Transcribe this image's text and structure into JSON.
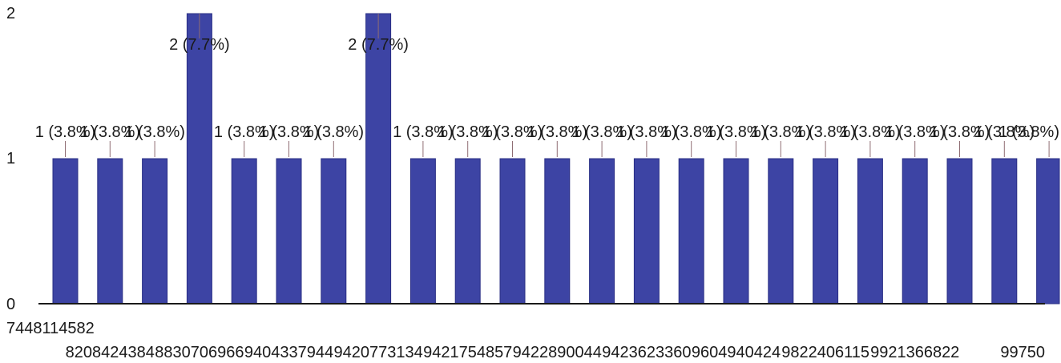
{
  "chart_data": {
    "type": "bar",
    "categories": [
      "7448114582",
      "8208424384",
      "",
      "8830706966",
      "",
      "9404337944",
      "",
      "9420773134",
      "",
      "9421754857",
      "",
      "9422890044",
      "",
      "9423623360",
      "",
      "9604940424",
      "",
      "9822406115",
      "",
      "9921366822",
      "",
      "99750",
      ""
    ],
    "values": [
      1,
      1,
      1,
      2,
      1,
      1,
      1,
      2,
      1,
      1,
      1,
      1,
      1,
      1,
      1,
      1,
      1,
      1,
      1,
      1,
      1,
      1,
      1
    ],
    "data_labels": [
      "1 (3.8%)",
      "1 (3.8%)",
      "1 (3.8%)",
      "2 (7.7%)",
      "1 (3.8%)",
      "1 (3.8%)",
      "1 (3.8%)",
      "2 (7.7%)",
      "1 (3.8%)",
      "1 (3.8%)",
      "1 (3.8%)",
      "1 (3.8%)",
      "1 (3.8%)",
      "1 (3.8%)",
      "1 (3.8%)",
      "1 (3.8%)",
      "1 (3.8%)",
      "1 (3.8%)",
      "1 (3.8%)",
      "1 (3.8%)",
      "1 (3.8%)",
      "1 (3.8%)",
      "1 (3.8%)"
    ],
    "yticks": [
      "0",
      "1",
      "2"
    ],
    "ylim": [
      0,
      2
    ],
    "title": "",
    "xlabel": "",
    "ylabel": "",
    "grid": false,
    "legend": "none",
    "bar_color": "#3d44a4",
    "bar_edge_color": "#2a2f85"
  }
}
